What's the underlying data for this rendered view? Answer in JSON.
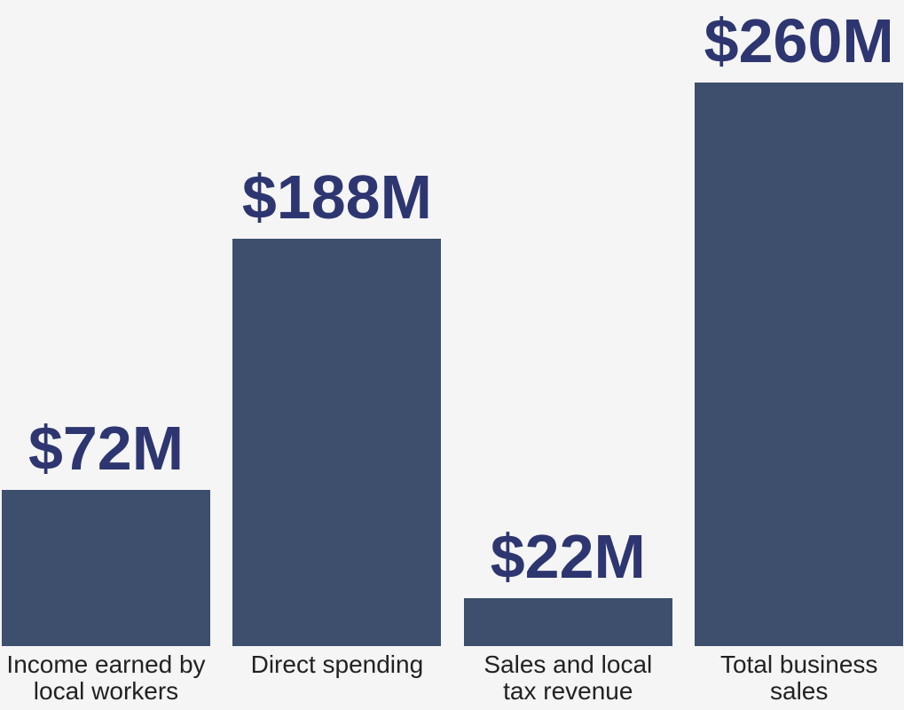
{
  "chart_data": {
    "type": "bar",
    "categories": [
      "Income earned by local workers",
      "Direct spending",
      "Sales and local tax revenue",
      "Total business sales"
    ],
    "values": [
      72,
      188,
      22,
      260
    ],
    "value_labels": [
      "$72M",
      "$188M",
      "$22M",
      "$260M"
    ],
    "color": "#3d4f6c",
    "label_color": "#2d3670"
  }
}
